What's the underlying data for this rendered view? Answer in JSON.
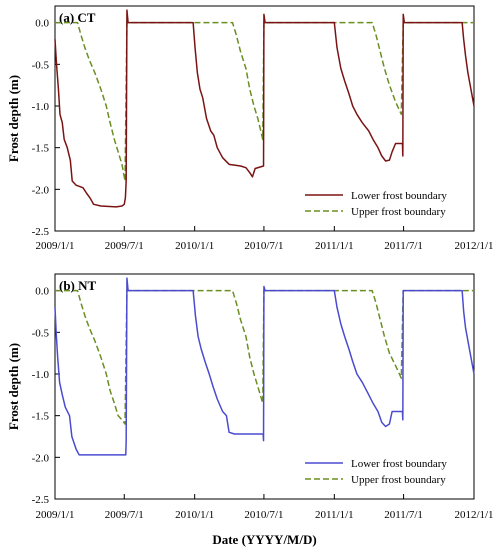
{
  "chart_data": [
    {
      "type": "line",
      "title": "(a) CT",
      "xlabel": "",
      "ylabel": "Frost depth (m)",
      "ylim": [
        -2.5,
        0.2
      ],
      "yticks": [
        0.0,
        -0.5,
        -1.0,
        -1.5,
        -2.0,
        -2.5
      ],
      "ytick_labels": [
        "0.0",
        "-0.5",
        "-1.0",
        "-1.5",
        "-2.0",
        "-2.5"
      ],
      "xlim": [
        "2009-01-01",
        "2012-01-01"
      ],
      "xticks": [
        "2009-01-01",
        "2009-07-01",
        "2010-01-01",
        "2010-07-01",
        "2011-01-01",
        "2011-07-01",
        "2012-01-01"
      ],
      "xtick_labels": [
        "2009/1/1",
        "2009/7/1",
        "2010/1/1",
        "2010/7/1",
        "2011/1/1",
        "2011/7/1",
        "2012/1/1"
      ],
      "legend": "bottom-right",
      "series": [
        {
          "name": "Lower frost boundary",
          "color": "#7a1414",
          "dash": "solid",
          "points": [
            [
              "2009-01-01",
              -0.2
            ],
            [
              "2009-01-05",
              -0.5
            ],
            [
              "2009-01-10",
              -0.8
            ],
            [
              "2009-01-14",
              -1.1
            ],
            [
              "2009-01-20",
              -1.2
            ],
            [
              "2009-01-25",
              -1.4
            ],
            [
              "2009-02-02",
              -1.5
            ],
            [
              "2009-02-10",
              -1.65
            ],
            [
              "2009-02-15",
              -1.9
            ],
            [
              "2009-02-25",
              -1.95
            ],
            [
              "2009-03-15",
              -1.98
            ],
            [
              "2009-03-25",
              -2.05
            ],
            [
              "2009-04-02",
              -2.1
            ],
            [
              "2009-04-12",
              -2.18
            ],
            [
              "2009-05-01",
              -2.2
            ],
            [
              "2009-06-10",
              -2.21
            ],
            [
              "2009-06-25",
              -2.2
            ],
            [
              "2009-07-01",
              -2.18
            ],
            [
              "2009-07-04",
              -2.1
            ],
            [
              "2009-07-06",
              -1.9
            ],
            [
              "2009-07-08",
              0.15
            ],
            [
              "2009-07-11",
              0.0
            ],
            [
              "2009-12-28",
              0.0
            ],
            [
              "2010-01-02",
              -0.3
            ],
            [
              "2010-01-08",
              -0.6
            ],
            [
              "2010-01-15",
              -0.8
            ],
            [
              "2010-01-22",
              -0.9
            ],
            [
              "2010-02-01",
              -1.15
            ],
            [
              "2010-02-12",
              -1.3
            ],
            [
              "2010-02-20",
              -1.35
            ],
            [
              "2010-03-01",
              -1.5
            ],
            [
              "2010-03-15",
              -1.62
            ],
            [
              "2010-04-01",
              -1.7
            ],
            [
              "2010-05-01",
              -1.72
            ],
            [
              "2010-05-15",
              -1.74
            ],
            [
              "2010-05-25",
              -1.8
            ],
            [
              "2010-06-01",
              -1.85
            ],
            [
              "2010-06-08",
              -1.75
            ],
            [
              "2010-06-30",
              -1.72
            ],
            [
              "2010-07-01",
              0.1
            ],
            [
              "2010-07-04",
              0.0
            ],
            [
              "2011-01-01",
              0.0
            ],
            [
              "2011-01-08",
              -0.3
            ],
            [
              "2011-01-18",
              -0.55
            ],
            [
              "2011-01-28",
              -0.7
            ],
            [
              "2011-02-08",
              -0.85
            ],
            [
              "2011-02-18",
              -1.0
            ],
            [
              "2011-03-01",
              -1.1
            ],
            [
              "2011-03-15",
              -1.2
            ],
            [
              "2011-04-01",
              -1.3
            ],
            [
              "2011-04-12",
              -1.4
            ],
            [
              "2011-04-25",
              -1.5
            ],
            [
              "2011-05-05",
              -1.6
            ],
            [
              "2011-05-15",
              -1.66
            ],
            [
              "2011-05-25",
              -1.65
            ],
            [
              "2011-06-01",
              -1.55
            ],
            [
              "2011-06-10",
              -1.45
            ],
            [
              "2011-06-28",
              -1.45
            ],
            [
              "2011-06-29",
              -1.6
            ],
            [
              "2011-06-30",
              0.1
            ],
            [
              "2011-07-03",
              0.0
            ],
            [
              "2011-12-01",
              0.0
            ],
            [
              "2011-12-05",
              -0.2
            ],
            [
              "2011-12-10",
              -0.4
            ],
            [
              "2011-12-16",
              -0.6
            ],
            [
              "2011-12-22",
              -0.75
            ],
            [
              "2011-12-28",
              -0.9
            ],
            [
              "2012-01-01",
              -1.0
            ]
          ]
        },
        {
          "name": "Upper frost boundary",
          "color": "#6b8e23",
          "dash": "dashed",
          "points": [
            [
              "2009-01-01",
              0.0
            ],
            [
              "2009-03-01",
              0.0
            ],
            [
              "2009-03-10",
              -0.15
            ],
            [
              "2009-03-20",
              -0.3
            ],
            [
              "2009-04-01",
              -0.45
            ],
            [
              "2009-04-15",
              -0.6
            ],
            [
              "2009-05-01",
              -0.8
            ],
            [
              "2009-05-15",
              -1.0
            ],
            [
              "2009-05-25",
              -1.2
            ],
            [
              "2009-06-05",
              -1.4
            ],
            [
              "2009-06-15",
              -1.55
            ],
            [
              "2009-06-25",
              -1.7
            ],
            [
              "2009-07-03",
              -1.9
            ],
            [
              "2009-07-08",
              0.0
            ],
            [
              "2010-04-10",
              0.0
            ],
            [
              "2010-04-20",
              -0.15
            ],
            [
              "2010-05-01",
              -0.35
            ],
            [
              "2010-05-15",
              -0.55
            ],
            [
              "2010-05-25",
              -0.8
            ],
            [
              "2010-06-05",
              -1.0
            ],
            [
              "2010-06-15",
              -1.15
            ],
            [
              "2010-06-28",
              -1.4
            ],
            [
              "2010-07-01",
              0.0
            ],
            [
              "2011-04-10",
              0.0
            ],
            [
              "2011-04-20",
              -0.15
            ],
            [
              "2011-05-01",
              -0.35
            ],
            [
              "2011-05-12",
              -0.55
            ],
            [
              "2011-05-25",
              -0.75
            ],
            [
              "2011-06-10",
              -0.95
            ],
            [
              "2011-06-25",
              -1.1
            ],
            [
              "2011-06-30",
              0.0
            ],
            [
              "2012-01-01",
              0.0
            ]
          ]
        }
      ]
    },
    {
      "type": "line",
      "title": "(b) NT",
      "xlabel": "Date (YYYY/M/D)",
      "ylabel": "Frost depth (m)",
      "ylim": [
        -2.5,
        0.2
      ],
      "yticks": [
        0.0,
        -0.5,
        -1.0,
        -1.5,
        -2.0,
        -2.5
      ],
      "ytick_labels": [
        "0.0",
        "-0.5",
        "-1.0",
        "-1.5",
        "-2.0",
        "-2.5"
      ],
      "xlim": [
        "2009-01-01",
        "2012-01-01"
      ],
      "xticks": [
        "2009-01-01",
        "2009-07-01",
        "2010-01-01",
        "2010-07-01",
        "2011-01-01",
        "2011-07-01",
        "2012-01-01"
      ],
      "xtick_labels": [
        "2009/1/1",
        "2009/7/1",
        "2010/1/1",
        "2010/7/1",
        "2011/1/1",
        "2011/7/1",
        "2012/1/1"
      ],
      "legend": "bottom-right",
      "series": [
        {
          "name": "Lower frost boundary",
          "color": "#4b4bd0",
          "dash": "solid",
          "points": [
            [
              "2009-01-01",
              -0.2
            ],
            [
              "2009-01-04",
              -0.5
            ],
            [
              "2009-01-08",
              -0.8
            ],
            [
              "2009-01-13",
              -1.1
            ],
            [
              "2009-01-20",
              -1.25
            ],
            [
              "2009-01-28",
              -1.4
            ],
            [
              "2009-02-08",
              -1.5
            ],
            [
              "2009-02-14",
              -1.75
            ],
            [
              "2009-02-25",
              -1.9
            ],
            [
              "2009-03-05",
              -1.97
            ],
            [
              "2009-04-01",
              -1.97
            ],
            [
              "2009-07-05",
              -1.97
            ],
            [
              "2009-07-06",
              -1.8
            ],
            [
              "2009-07-08",
              0.15
            ],
            [
              "2009-07-11",
              0.0
            ],
            [
              "2009-12-28",
              0.0
            ],
            [
              "2010-01-03",
              -0.3
            ],
            [
              "2010-01-10",
              -0.55
            ],
            [
              "2010-01-18",
              -0.7
            ],
            [
              "2010-01-28",
              -0.85
            ],
            [
              "2010-02-08",
              -1.0
            ],
            [
              "2010-02-18",
              -1.15
            ],
            [
              "2010-03-01",
              -1.3
            ],
            [
              "2010-03-15",
              -1.45
            ],
            [
              "2010-03-25",
              -1.5
            ],
            [
              "2010-04-01",
              -1.7
            ],
            [
              "2010-04-15",
              -1.72
            ],
            [
              "2010-06-29",
              -1.72
            ],
            [
              "2010-06-30",
              -1.8
            ],
            [
              "2010-07-01",
              0.05
            ],
            [
              "2010-07-04",
              0.0
            ],
            [
              "2011-01-01",
              0.0
            ],
            [
              "2011-01-08",
              -0.2
            ],
            [
              "2011-01-18",
              -0.4
            ],
            [
              "2011-01-28",
              -0.55
            ],
            [
              "2011-02-08",
              -0.7
            ],
            [
              "2011-02-18",
              -0.85
            ],
            [
              "2011-03-01",
              -1.0
            ],
            [
              "2011-03-15",
              -1.1
            ],
            [
              "2011-04-01",
              -1.25
            ],
            [
              "2011-04-12",
              -1.35
            ],
            [
              "2011-04-25",
              -1.45
            ],
            [
              "2011-05-05",
              -1.58
            ],
            [
              "2011-05-15",
              -1.63
            ],
            [
              "2011-05-25",
              -1.6
            ],
            [
              "2011-06-01",
              -1.45
            ],
            [
              "2011-06-28",
              -1.45
            ],
            [
              "2011-06-29",
              -1.55
            ],
            [
              "2011-06-30",
              0.0
            ],
            [
              "2011-12-01",
              0.0
            ],
            [
              "2011-12-05",
              -0.25
            ],
            [
              "2011-12-10",
              -0.45
            ],
            [
              "2011-12-16",
              -0.6
            ],
            [
              "2011-12-22",
              -0.75
            ],
            [
              "2011-12-28",
              -0.9
            ],
            [
              "2012-01-01",
              -1.0
            ]
          ]
        },
        {
          "name": "Upper frost boundary",
          "color": "#6b8e23",
          "dash": "dashed",
          "points": [
            [
              "2009-01-01",
              0.0
            ],
            [
              "2009-03-01",
              0.0
            ],
            [
              "2009-03-10",
              -0.15
            ],
            [
              "2009-03-20",
              -0.3
            ],
            [
              "2009-04-01",
              -0.45
            ],
            [
              "2009-04-15",
              -0.6
            ],
            [
              "2009-05-01",
              -0.8
            ],
            [
              "2009-05-15",
              -1.0
            ],
            [
              "2009-05-25",
              -1.2
            ],
            [
              "2009-06-05",
              -1.35
            ],
            [
              "2009-06-15",
              -1.5
            ],
            [
              "2009-06-25",
              -1.55
            ],
            [
              "2009-07-03",
              -1.6
            ],
            [
              "2009-07-08",
              0.0
            ],
            [
              "2010-04-10",
              0.0
            ],
            [
              "2010-04-20",
              -0.15
            ],
            [
              "2010-05-01",
              -0.35
            ],
            [
              "2010-05-15",
              -0.55
            ],
            [
              "2010-05-25",
              -0.8
            ],
            [
              "2010-06-05",
              -1.0
            ],
            [
              "2010-06-15",
              -1.15
            ],
            [
              "2010-06-28",
              -1.35
            ],
            [
              "2010-07-01",
              0.0
            ],
            [
              "2011-04-10",
              0.0
            ],
            [
              "2011-04-20",
              -0.15
            ],
            [
              "2011-05-01",
              -0.35
            ],
            [
              "2011-05-12",
              -0.55
            ],
            [
              "2011-05-25",
              -0.75
            ],
            [
              "2011-06-10",
              -0.9
            ],
            [
              "2011-06-25",
              -1.05
            ],
            [
              "2011-06-30",
              0.0
            ],
            [
              "2012-01-01",
              0.0
            ]
          ]
        }
      ]
    }
  ]
}
